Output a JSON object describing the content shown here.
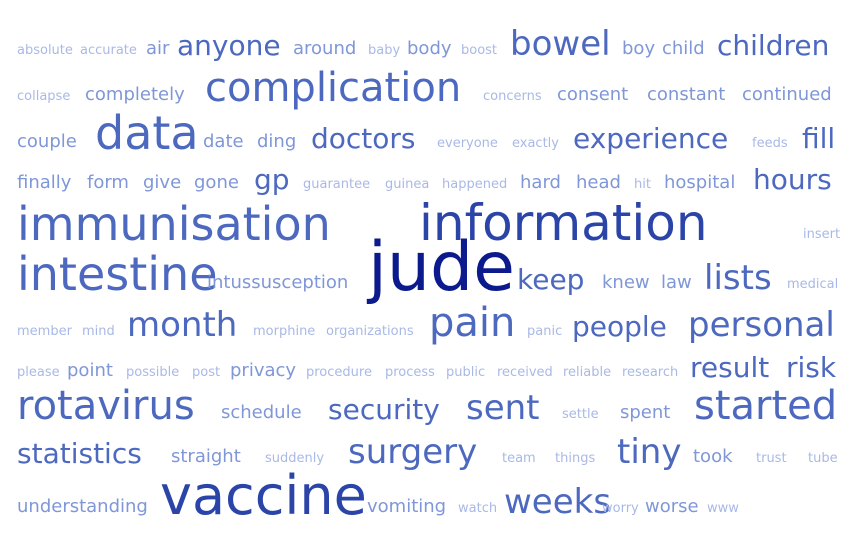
{
  "palette": {
    "darkest": "#0b1a8c",
    "dark": "#2a44a8",
    "mid": "#4d69bf",
    "light": "#7f97d8",
    "lightest": "#a9b9e6"
  },
  "words": [
    {
      "text": "absolute",
      "weight": 1
    },
    {
      "text": "accurate",
      "weight": 1
    },
    {
      "text": "air",
      "weight": 2
    },
    {
      "text": "anyone",
      "weight": 4
    },
    {
      "text": "around",
      "weight": 2
    },
    {
      "text": "baby",
      "weight": 1
    },
    {
      "text": "body",
      "weight": 2
    },
    {
      "text": "boost",
      "weight": 1
    },
    {
      "text": "bowel",
      "weight": 5
    },
    {
      "text": "boy",
      "weight": 2
    },
    {
      "text": "child",
      "weight": 2
    },
    {
      "text": "children",
      "weight": 4
    },
    {
      "text": "collapse",
      "weight": 1
    },
    {
      "text": "completely",
      "weight": 2
    },
    {
      "text": "complication",
      "weight": 6
    },
    {
      "text": "concerns",
      "weight": 1
    },
    {
      "text": "consent",
      "weight": 2
    },
    {
      "text": "constant",
      "weight": 2
    },
    {
      "text": "continued",
      "weight": 2
    },
    {
      "text": "couple",
      "weight": 2
    },
    {
      "text": "data",
      "weight": 7
    },
    {
      "text": "date",
      "weight": 2
    },
    {
      "text": "ding",
      "weight": 2
    },
    {
      "text": "doctors",
      "weight": 4
    },
    {
      "text": "everyone",
      "weight": 1
    },
    {
      "text": "exactly",
      "weight": 1
    },
    {
      "text": "experience",
      "weight": 4
    },
    {
      "text": "feeds",
      "weight": 1
    },
    {
      "text": "fill",
      "weight": 4
    },
    {
      "text": "finally",
      "weight": 2
    },
    {
      "text": "form",
      "weight": 2
    },
    {
      "text": "give",
      "weight": 2
    },
    {
      "text": "gone",
      "weight": 2
    },
    {
      "text": "gp",
      "weight": 4
    },
    {
      "text": "guarantee",
      "weight": 1
    },
    {
      "text": "guinea",
      "weight": 1
    },
    {
      "text": "happened",
      "weight": 1
    },
    {
      "text": "hard",
      "weight": 2
    },
    {
      "text": "head",
      "weight": 2
    },
    {
      "text": "hit",
      "weight": 1
    },
    {
      "text": "hospital",
      "weight": 2
    },
    {
      "text": "hours",
      "weight": 4
    },
    {
      "text": "immunisation",
      "weight": 7
    },
    {
      "text": "information",
      "weight": 8
    },
    {
      "text": "insert",
      "weight": 1
    },
    {
      "text": "intestine",
      "weight": 7
    },
    {
      "text": "intussusception",
      "weight": 2
    },
    {
      "text": "jude",
      "weight": 10
    },
    {
      "text": "keep",
      "weight": 4
    },
    {
      "text": "knew",
      "weight": 2
    },
    {
      "text": "law",
      "weight": 2
    },
    {
      "text": "lists",
      "weight": 5
    },
    {
      "text": "medical",
      "weight": 1
    },
    {
      "text": "member",
      "weight": 1
    },
    {
      "text": "mind",
      "weight": 1
    },
    {
      "text": "month",
      "weight": 5
    },
    {
      "text": "morphine",
      "weight": 1
    },
    {
      "text": "organizations",
      "weight": 1
    },
    {
      "text": "pain",
      "weight": 6
    },
    {
      "text": "panic",
      "weight": 1
    },
    {
      "text": "people",
      "weight": 4
    },
    {
      "text": "personal",
      "weight": 5
    },
    {
      "text": "please",
      "weight": 1
    },
    {
      "text": "point",
      "weight": 2
    },
    {
      "text": "possible",
      "weight": 1
    },
    {
      "text": "post",
      "weight": 1
    },
    {
      "text": "privacy",
      "weight": 2
    },
    {
      "text": "procedure",
      "weight": 1
    },
    {
      "text": "process",
      "weight": 1
    },
    {
      "text": "public",
      "weight": 1
    },
    {
      "text": "received",
      "weight": 1
    },
    {
      "text": "reliable",
      "weight": 1
    },
    {
      "text": "research",
      "weight": 1
    },
    {
      "text": "result",
      "weight": 4
    },
    {
      "text": "risk",
      "weight": 4
    },
    {
      "text": "rotavirus",
      "weight": 6
    },
    {
      "text": "schedule",
      "weight": 2
    },
    {
      "text": "security",
      "weight": 4
    },
    {
      "text": "sent",
      "weight": 5
    },
    {
      "text": "settle",
      "weight": 1
    },
    {
      "text": "spent",
      "weight": 2
    },
    {
      "text": "started",
      "weight": 6
    },
    {
      "text": "statistics",
      "weight": 4
    },
    {
      "text": "straight",
      "weight": 2
    },
    {
      "text": "suddenly",
      "weight": 1
    },
    {
      "text": "surgery",
      "weight": 5
    },
    {
      "text": "team",
      "weight": 1
    },
    {
      "text": "things",
      "weight": 1
    },
    {
      "text": "tiny",
      "weight": 5
    },
    {
      "text": "took",
      "weight": 2
    },
    {
      "text": "trust",
      "weight": 1
    },
    {
      "text": "tube",
      "weight": 1
    },
    {
      "text": "understanding",
      "weight": 2
    },
    {
      "text": "vaccine",
      "weight": 9
    },
    {
      "text": "vomiting",
      "weight": 2
    },
    {
      "text": "watch",
      "weight": 1
    },
    {
      "text": "weeks",
      "weight": 5
    },
    {
      "text": "worry",
      "weight": 1
    },
    {
      "text": "worse",
      "weight": 2
    },
    {
      "text": "www",
      "weight": 1
    }
  ]
}
